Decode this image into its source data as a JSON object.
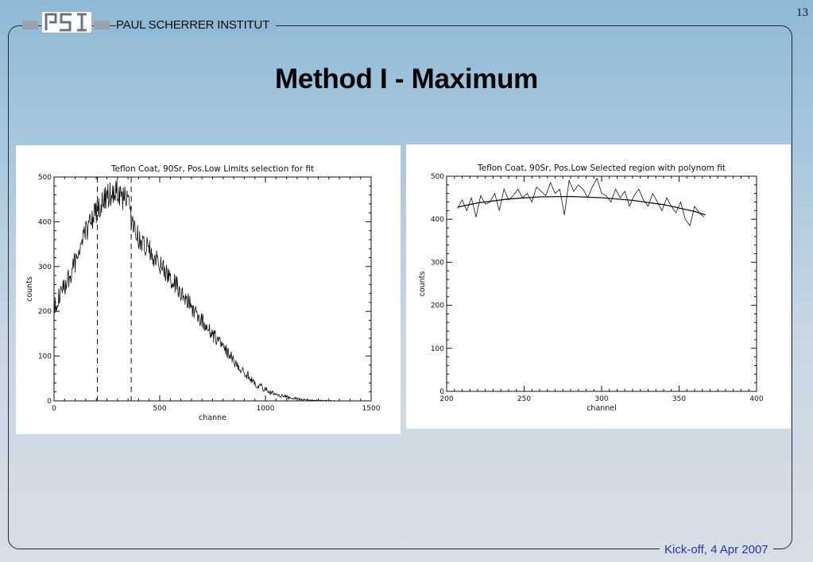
{
  "header": {
    "institute": "PAUL SCHERRER INSTITUT",
    "logo_text": "PSI",
    "page_number": "13"
  },
  "slide": {
    "title": "Method I - Maximum"
  },
  "footer": {
    "text": "Kick-off, 4 Apr 2007"
  },
  "colors": {
    "footer_text": "#2335a8",
    "frame": "#1f2a44",
    "logo_grey": "#9aa3ad"
  },
  "chart_data": [
    {
      "type": "line",
      "title": "Teflon Coat, 90Sr, Pos.Low Limits selection for fit",
      "xlabel": "channe",
      "ylabel": "counts",
      "xlim": [
        0,
        1500
      ],
      "ylim": [
        0,
        500
      ],
      "xticks": [
        0,
        500,
        1000,
        1500
      ],
      "yticks": [
        0,
        100,
        200,
        300,
        400,
        500
      ],
      "series": [
        {
          "x": [
            0,
            25,
            50,
            75,
            100,
            125,
            150,
            175,
            200,
            225,
            250,
            275,
            300,
            325,
            350,
            375,
            400,
            425,
            450,
            475,
            500,
            550,
            600,
            650,
            700,
            750,
            800,
            850,
            900,
            950,
            1000,
            1050,
            1100,
            1150,
            1200,
            1250,
            1300
          ],
          "y": [
            210,
            235,
            255,
            280,
            310,
            340,
            375,
            405,
            425,
            440,
            455,
            462,
            465,
            455,
            445,
            385,
            365,
            350,
            335,
            320,
            305,
            275,
            245,
            210,
            180,
            150,
            120,
            90,
            65,
            40,
            25,
            14,
            8,
            4,
            2,
            1,
            0
          ]
        }
      ],
      "vlines": [
        205,
        365
      ],
      "grid": false
    },
    {
      "type": "line",
      "title": "Teflon Coat, 90Sr, Pos.Low Selected region with polynom fit",
      "xlabel": "channel",
      "ylabel": "counts",
      "xlim": [
        200,
        400
      ],
      "ylim": [
        0,
        500
      ],
      "xticks": [
        200,
        250,
        300,
        350,
        400
      ],
      "yticks": [
        0,
        100,
        200,
        300,
        400,
        500
      ],
      "series": [
        {
          "x": [
            207,
            210,
            213,
            216,
            219,
            222,
            225,
            228,
            231,
            234,
            237,
            240,
            243,
            246,
            249,
            252,
            255,
            258,
            261,
            264,
            267,
            270,
            273,
            276,
            279,
            282,
            285,
            288,
            291,
            294,
            297,
            300,
            303,
            306,
            309,
            312,
            315,
            318,
            321,
            324,
            327,
            330,
            333,
            336,
            339,
            342,
            345,
            348,
            351,
            354,
            357,
            360,
            363,
            366
          ],
          "y": [
            425,
            445,
            420,
            450,
            405,
            455,
            435,
            440,
            460,
            420,
            470,
            445,
            455,
            470,
            450,
            460,
            440,
            475,
            465,
            455,
            485,
            460,
            470,
            410,
            490,
            465,
            480,
            470,
            450,
            475,
            495,
            460,
            455,
            440,
            470,
            450,
            465,
            430,
            455,
            470,
            445,
            430,
            460,
            440,
            420,
            450,
            430,
            415,
            440,
            400,
            385,
            430,
            415,
            405
          ]
        },
        {
          "name": "polynom fit",
          "x": [
            207,
            220,
            240,
            260,
            280,
            300,
            320,
            340,
            360,
            367
          ],
          "y": [
            428,
            438,
            447,
            452,
            453,
            450,
            444,
            434,
            418,
            410
          ]
        }
      ],
      "grid": false
    }
  ]
}
